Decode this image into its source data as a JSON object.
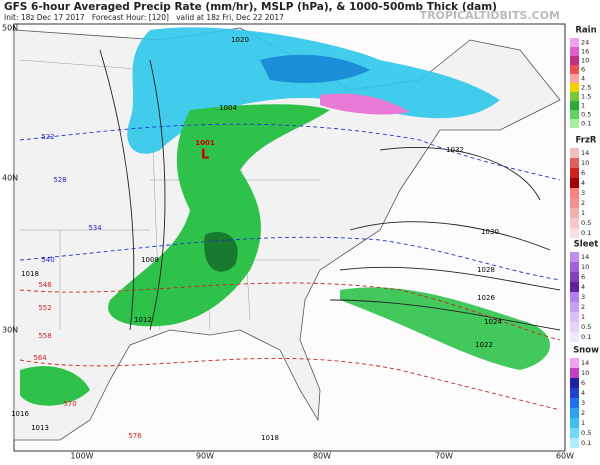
{
  "header": {
    "title": "GFS 6-hour Averaged Precip Rate (mm/hr), MSLP (hPa), & 1000-500mb Thick (dam)",
    "subtitle": "Init: 18z Dec 17 2017   Forecast Hour: [120]   valid at 18z Fri, Dec 22 2017",
    "credit": "TROPICALTIDBITS.COM"
  },
  "lat_labels": [
    "50N",
    "40N",
    "30N"
  ],
  "lon_labels": [
    "100W",
    "90W",
    "80W",
    "70W",
    "60W"
  ],
  "legends": [
    {
      "title": "Rain",
      "labels": [
        "24",
        "16",
        "10",
        "6",
        "4",
        "2.5",
        "1.5",
        "1",
        "0.5",
        "0.1"
      ]
    },
    {
      "title": "FrzR",
      "labels": [
        "14",
        "10",
        "6",
        "4",
        "3",
        "2",
        "1",
        "0.5",
        "0.1"
      ]
    },
    {
      "title": "Sleet",
      "labels": [
        "14",
        "10",
        "6",
        "4",
        "3",
        "2",
        "1",
        "0.5",
        "0.1"
      ]
    },
    {
      "title": "Snow",
      "labels": [
        "14",
        "10",
        "6",
        "4",
        "3",
        "2",
        "1",
        "0.5",
        "0.1"
      ]
    }
  ],
  "contour_labels": [
    "1032",
    "1030",
    "1028",
    "1026",
    "1024",
    "1022",
    "1020",
    "1018",
    "1016",
    "1012",
    "1008",
    "1004",
    "1001",
    "L",
    "1013",
    "1018",
    "522",
    "528",
    "534",
    "540",
    "546",
    "552",
    "558",
    "564",
    "570",
    "576"
  ]
}
